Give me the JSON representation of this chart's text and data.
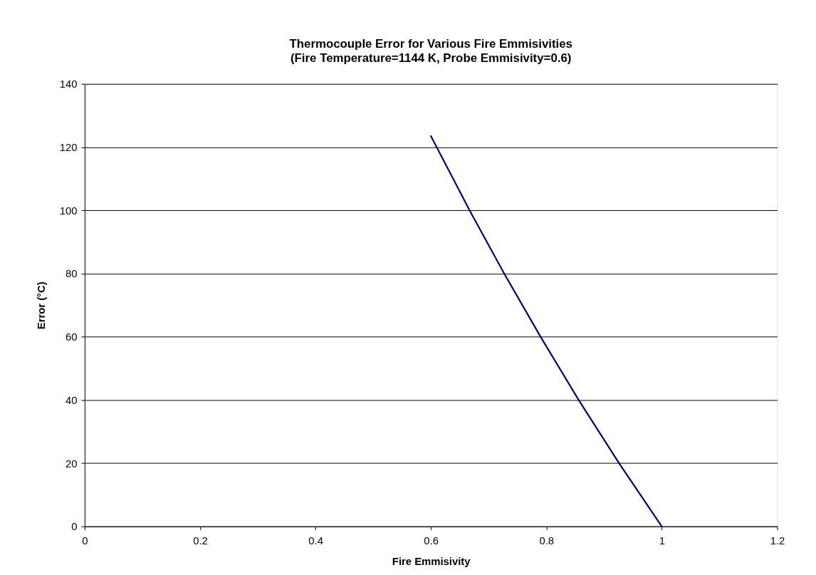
{
  "chart_data": {
    "type": "line",
    "title": "Thermocouple Error for Various Fire Emmisivities",
    "subtitle": "(Fire Temperature=1144 K, Probe Emmisivity=0.6)",
    "xlabel": "Fire Emmisivity",
    "ylabel": "Error (°C)",
    "series": [
      {
        "color": "#000080",
        "x": [
          0.6,
          0.667,
          0.727,
          0.79,
          0.856,
          0.926,
          1.0
        ],
        "values": [
          123.5,
          100,
          80,
          60,
          40,
          20,
          0
        ]
      }
    ],
    "xlim": [
      0,
      1.2
    ],
    "xticks": [
      0,
      0.2,
      0.4,
      0.6,
      0.8,
      1,
      1.2
    ],
    "ylim": [
      0,
      140
    ],
    "yticks": [
      0,
      20,
      40,
      60,
      80,
      100,
      120,
      140
    ],
    "grid": "y",
    "legend": false,
    "marker": "none",
    "line_style": "solid"
  }
}
